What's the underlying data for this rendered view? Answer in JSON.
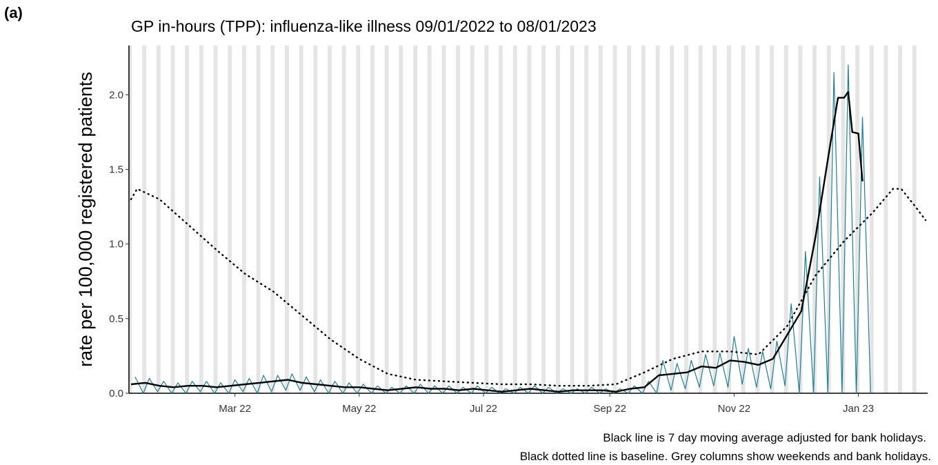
{
  "panel_label": "(a)",
  "chart_data": {
    "type": "line",
    "title": "GP in-hours (TPP): influenza-like illness 09/01/2022 to 08/01/2023",
    "y_label": "rate per 100,000 registered patients",
    "captions": [
      "Black line is 7 day moving average adjusted for bank holidays.",
      "Black dotted line is baseline. Grey columns show weekends and bank holidays."
    ],
    "xlim": [
      -1,
      391
    ],
    "xticks": [
      {
        "value": 51,
        "label": "Mar 22"
      },
      {
        "value": 112,
        "label": "May 22"
      },
      {
        "value": 173,
        "label": "Jul 22"
      },
      {
        "value": 235,
        "label": "Sep 22"
      },
      {
        "value": 296,
        "label": "Nov 22"
      },
      {
        "value": 357,
        "label": "Jan 23"
      }
    ],
    "ylim": [
      0,
      2.33
    ],
    "yticks": [
      {
        "value": 0,
        "label": "0.0"
      },
      {
        "value": 0.5,
        "label": "0.5"
      },
      {
        "value": 1,
        "label": "1.0"
      },
      {
        "value": 1.5,
        "label": "1.5"
      },
      {
        "value": 2,
        "label": "2.0"
      }
    ],
    "shading_color": "#e5e5e5",
    "series": [
      {
        "color": "#1a7f96",
        "style": "thin",
        "x": [
          2,
          6,
          9,
          13,
          16,
          20,
          23,
          27,
          30,
          34,
          37,
          41,
          44,
          48,
          51,
          55,
          58,
          62,
          65,
          69,
          72,
          76,
          79,
          83,
          86,
          90,
          93,
          97,
          100,
          104,
          107,
          111,
          114,
          118,
          121,
          125,
          128,
          132,
          135,
          139,
          142,
          146,
          149,
          153,
          156,
          160,
          163,
          167,
          170,
          174,
          177,
          181,
          184,
          188,
          191,
          195,
          198,
          202,
          205,
          209,
          212,
          216,
          219,
          223,
          226,
          230,
          233,
          237,
          240,
          244,
          247,
          251,
          254,
          258,
          261,
          265,
          268,
          272,
          275,
          279,
          282,
          286,
          289,
          293,
          296,
          300,
          303,
          307,
          310,
          314,
          317,
          321,
          324,
          328,
          331,
          335,
          338,
          342,
          345,
          349,
          352,
          356,
          359,
          363
        ],
        "values": [
          0.11,
          0,
          0.1,
          0.01,
          0.08,
          0,
          0.07,
          0,
          0.08,
          0.01,
          0.08,
          0,
          0.07,
          0,
          0.09,
          0.01,
          0.1,
          0,
          0.12,
          0.01,
          0.12,
          0.02,
          0.13,
          0.02,
          0.11,
          0.01,
          0.09,
          0,
          0.08,
          0,
          0.07,
          0,
          0.06,
          0,
          0.05,
          0,
          0.04,
          0,
          0.05,
          0,
          0.06,
          0,
          0.05,
          0,
          0.05,
          0,
          0.04,
          0,
          0.05,
          0,
          0.04,
          0,
          0.03,
          0,
          0.04,
          0,
          0.05,
          0,
          0.04,
          0,
          0.03,
          0,
          0.03,
          0,
          0.04,
          0,
          0.03,
          0,
          0.03,
          0,
          0.05,
          0,
          0.08,
          0,
          0.22,
          0.02,
          0.2,
          0.03,
          0.22,
          0.04,
          0.26,
          0.05,
          0.27,
          0.04,
          0.38,
          0.06,
          0.3,
          0.04,
          0.28,
          0.03,
          0.35,
          0.05,
          0.6,
          0,
          0.95,
          0,
          1.45,
          0,
          2.15,
          0,
          2.2,
          0,
          1.85,
          0
        ]
      },
      {
        "color": "#000000",
        "style": "solid",
        "x": [
          0,
          7,
          14,
          21,
          28,
          35,
          42,
          49,
          56,
          63,
          70,
          77,
          84,
          91,
          98,
          105,
          112,
          119,
          126,
          133,
          140,
          147,
          154,
          161,
          168,
          175,
          182,
          189,
          196,
          203,
          210,
          217,
          224,
          231,
          238,
          245,
          252,
          259,
          266,
          273,
          280,
          287,
          294,
          301,
          308,
          315,
          322,
          329,
          336,
          343,
          347,
          350,
          352,
          354,
          357,
          359
        ],
        "values": [
          0.06,
          0.07,
          0.05,
          0.04,
          0.05,
          0.05,
          0.04,
          0.05,
          0.06,
          0.07,
          0.08,
          0.09,
          0.07,
          0.06,
          0.05,
          0.04,
          0.04,
          0.03,
          0.02,
          0.03,
          0.04,
          0.03,
          0.03,
          0.02,
          0.03,
          0.02,
          0.01,
          0.02,
          0.03,
          0.02,
          0.01,
          0.02,
          0.02,
          0.02,
          0.01,
          0.03,
          0.04,
          0.12,
          0.13,
          0.14,
          0.18,
          0.17,
          0.22,
          0.21,
          0.19,
          0.23,
          0.39,
          0.55,
          1.05,
          1.65,
          1.98,
          1.98,
          2.02,
          1.75,
          1.74,
          1.42
        ]
      },
      {
        "color": "#000000",
        "style": "dotted",
        "x": [
          0,
          3,
          14,
          28,
          42,
          56,
          70,
          84,
          98,
          112,
          126,
          140,
          154,
          168,
          182,
          196,
          210,
          224,
          238,
          252,
          266,
          280,
          294,
          308,
          322,
          336,
          350,
          364,
          374,
          378,
          385,
          390
        ],
        "values": [
          1.3,
          1.37,
          1.3,
          1.13,
          0.96,
          0.8,
          0.68,
          0.52,
          0.36,
          0.23,
          0.13,
          0.09,
          0.08,
          0.07,
          0.06,
          0.06,
          0.05,
          0.05,
          0.06,
          0.14,
          0.23,
          0.28,
          0.28,
          0.26,
          0.45,
          0.79,
          1.02,
          1.21,
          1.37,
          1.37,
          1.25,
          1.16
        ]
      }
    ]
  }
}
